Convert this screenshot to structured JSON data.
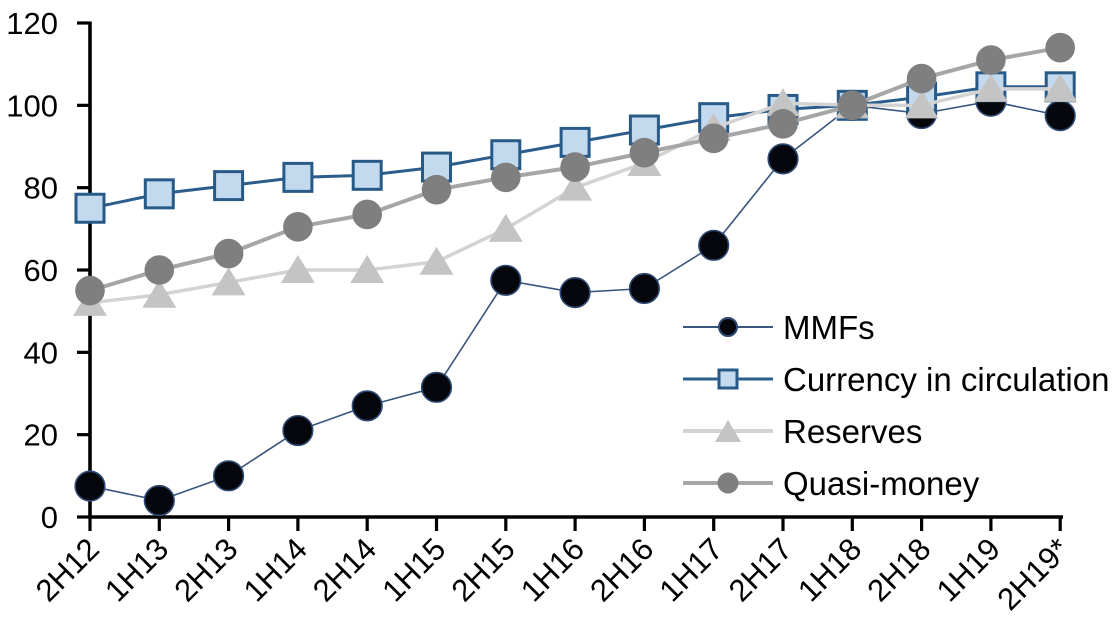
{
  "chart_data": {
    "type": "line",
    "title": "",
    "categories": [
      "2H12",
      "1H13",
      "2H13",
      "1H14",
      "2H14",
      "1H15",
      "2H15",
      "1H16",
      "2H16",
      "1H17",
      "2H17",
      "1H18",
      "2H18",
      "1H19",
      "2H19*"
    ],
    "series": [
      {
        "name": "MMFs",
        "marker": "circle",
        "marker_color": "#06070d",
        "marker_edge": "#2e4a74",
        "line_color": "#3a567e",
        "line_width": 1.6,
        "values": [
          7.5,
          4,
          10,
          21,
          27,
          31.5,
          57.5,
          54.5,
          55.5,
          66,
          87,
          100,
          98,
          101,
          97.5
        ]
      },
      {
        "name": "Currency in circulation",
        "marker": "square",
        "marker_color": "#c3d9ee",
        "marker_edge": "#275a87",
        "line_color": "#2b5c8c",
        "line_width": 3,
        "values": [
          75,
          78.5,
          80.5,
          82.5,
          83,
          85,
          88,
          91,
          94,
          97,
          99,
          100,
          102,
          104.5,
          104.5
        ]
      },
      {
        "name": "Reserves",
        "marker": "triangle",
        "marker_color": "#c4c4c4",
        "marker_edge": "#c4c4c4",
        "line_color": "#d3d3d3",
        "line_width": 3.5,
        "values": [
          52,
          54,
          57,
          60,
          60,
          62,
          70,
          80,
          86,
          94.5,
          100.5,
          100,
          100,
          104,
          104
        ]
      },
      {
        "name": "Quasi-money",
        "marker": "circle",
        "marker_color": "#7f7f7f",
        "marker_edge": "#7f7f7f",
        "line_color": "#a6a6a6",
        "line_width": 4,
        "values": [
          55,
          60,
          64,
          70.5,
          73.5,
          79.5,
          82.5,
          85,
          88.5,
          92,
          95.5,
          100,
          106.5,
          111,
          114
        ]
      }
    ],
    "xlabel": "",
    "ylabel": "",
    "ylim": [
      0,
      120
    ],
    "yticks": [
      0,
      20,
      40,
      60,
      80,
      100,
      120
    ],
    "grid": false,
    "legend_position": "inside-right",
    "axis_color": "#000000",
    "background": "#ffffff"
  }
}
